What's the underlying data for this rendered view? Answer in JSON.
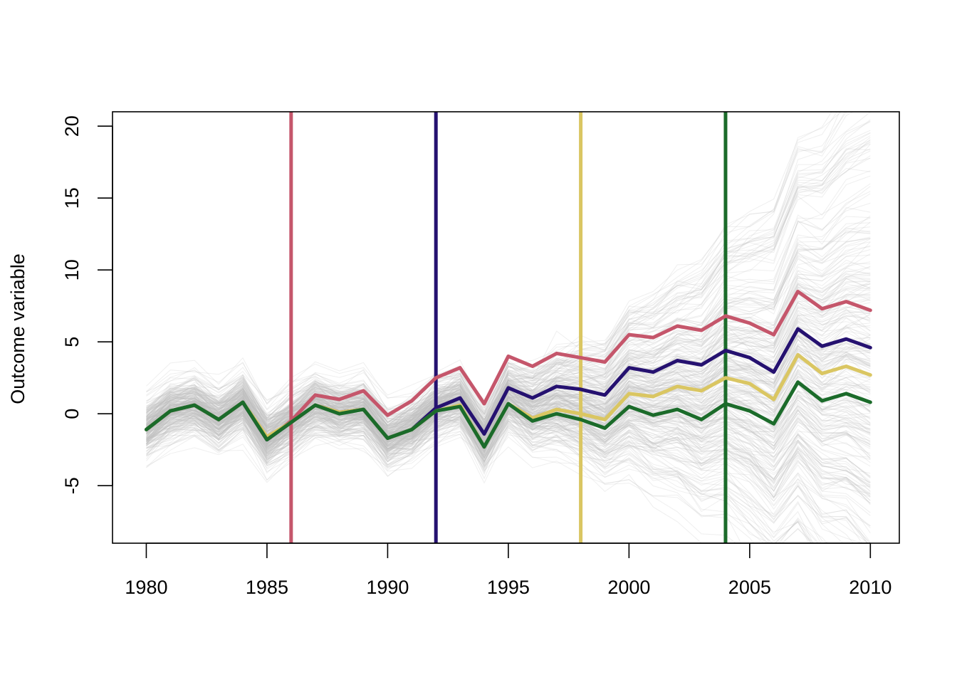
{
  "chart_data": {
    "type": "line",
    "title": "",
    "xlabel": "",
    "ylabel": "Outcome variable",
    "xlim": [
      1978.6,
      2011.2
    ],
    "ylim": [
      -9,
      21
    ],
    "xticks": [
      1980,
      1985,
      1990,
      1995,
      2000,
      2005,
      2010
    ],
    "yticks": [
      -5,
      0,
      5,
      10,
      15,
      20
    ],
    "xtick_labels": [
      "1980",
      "1985",
      "1990",
      "1995",
      "2000",
      "2005",
      "2010"
    ],
    "ytick_labels": [
      "-5",
      "0",
      "5",
      "10",
      "15",
      "20"
    ],
    "grid": false,
    "legend": "none",
    "x": [
      1980,
      1981,
      1982,
      1983,
      1984,
      1985,
      1986,
      1987,
      1988,
      1989,
      1990,
      1991,
      1992,
      1993,
      1994,
      1995,
      1996,
      1997,
      1998,
      1999,
      2000,
      2001,
      2002,
      2003,
      2004,
      2005,
      2006,
      2007,
      2008,
      2009,
      2010
    ],
    "background_lines": {
      "description_color": "#bebebe",
      "count": 300,
      "baseline": [
        -1.1,
        0.2,
        0.6,
        -0.4,
        0.8,
        -1.8,
        -0.6,
        0.6,
        0.1,
        0.3,
        -1.7,
        -1.1,
        0.2,
        0.6,
        -2.3,
        0.7,
        -0.4,
        0.1,
        -0.3,
        -1.0,
        0.5,
        0.0,
        0.3,
        -0.3,
        0.8,
        0.3,
        -0.6,
        2.3,
        1.0,
        1.5,
        0.9
      ]
    },
    "series": [
      {
        "color": "#c5566b",
        "treatment_year": 1986,
        "values": [
          -1.1,
          0.2,
          0.6,
          -0.4,
          0.8,
          -1.8,
          -0.5,
          1.3,
          1.0,
          1.6,
          -0.1,
          0.9,
          2.5,
          3.2,
          0.7,
          4.0,
          3.3,
          4.2,
          3.9,
          3.6,
          5.5,
          5.3,
          6.1,
          5.8,
          6.8,
          6.3,
          5.5,
          8.5,
          7.3,
          7.8,
          7.2
        ]
      },
      {
        "color": "#251170",
        "treatment_year": 1992,
        "values": [
          -1.1,
          0.2,
          0.6,
          -0.4,
          0.8,
          -1.8,
          -0.6,
          0.6,
          0.1,
          0.3,
          -1.7,
          -1.1,
          0.4,
          1.1,
          -1.4,
          1.8,
          1.1,
          1.9,
          1.7,
          1.3,
          3.2,
          2.9,
          3.7,
          3.4,
          4.4,
          3.9,
          2.9,
          5.9,
          4.7,
          5.2,
          4.6
        ]
      },
      {
        "color": "#dac662",
        "treatment_year": 1998,
        "values": [
          -1.1,
          0.2,
          0.6,
          -0.4,
          0.8,
          -1.6,
          -0.6,
          0.6,
          0.1,
          0.3,
          -1.7,
          -1.1,
          0.2,
          0.6,
          -2.3,
          0.7,
          -0.3,
          0.3,
          0.0,
          -0.4,
          1.4,
          1.2,
          1.9,
          1.6,
          2.5,
          2.1,
          1.0,
          4.1,
          2.8,
          3.3,
          2.7
        ]
      },
      {
        "color": "#1b6b2a",
        "treatment_year": 2004,
        "values": [
          -1.1,
          0.2,
          0.6,
          -0.4,
          0.8,
          -1.8,
          -0.6,
          0.6,
          0.0,
          0.3,
          -1.7,
          -1.1,
          0.2,
          0.5,
          -2.3,
          0.7,
          -0.5,
          0.0,
          -0.4,
          -1.0,
          0.5,
          -0.1,
          0.3,
          -0.4,
          0.7,
          0.2,
          -0.7,
          2.2,
          0.9,
          1.4,
          0.8
        ]
      }
    ]
  }
}
